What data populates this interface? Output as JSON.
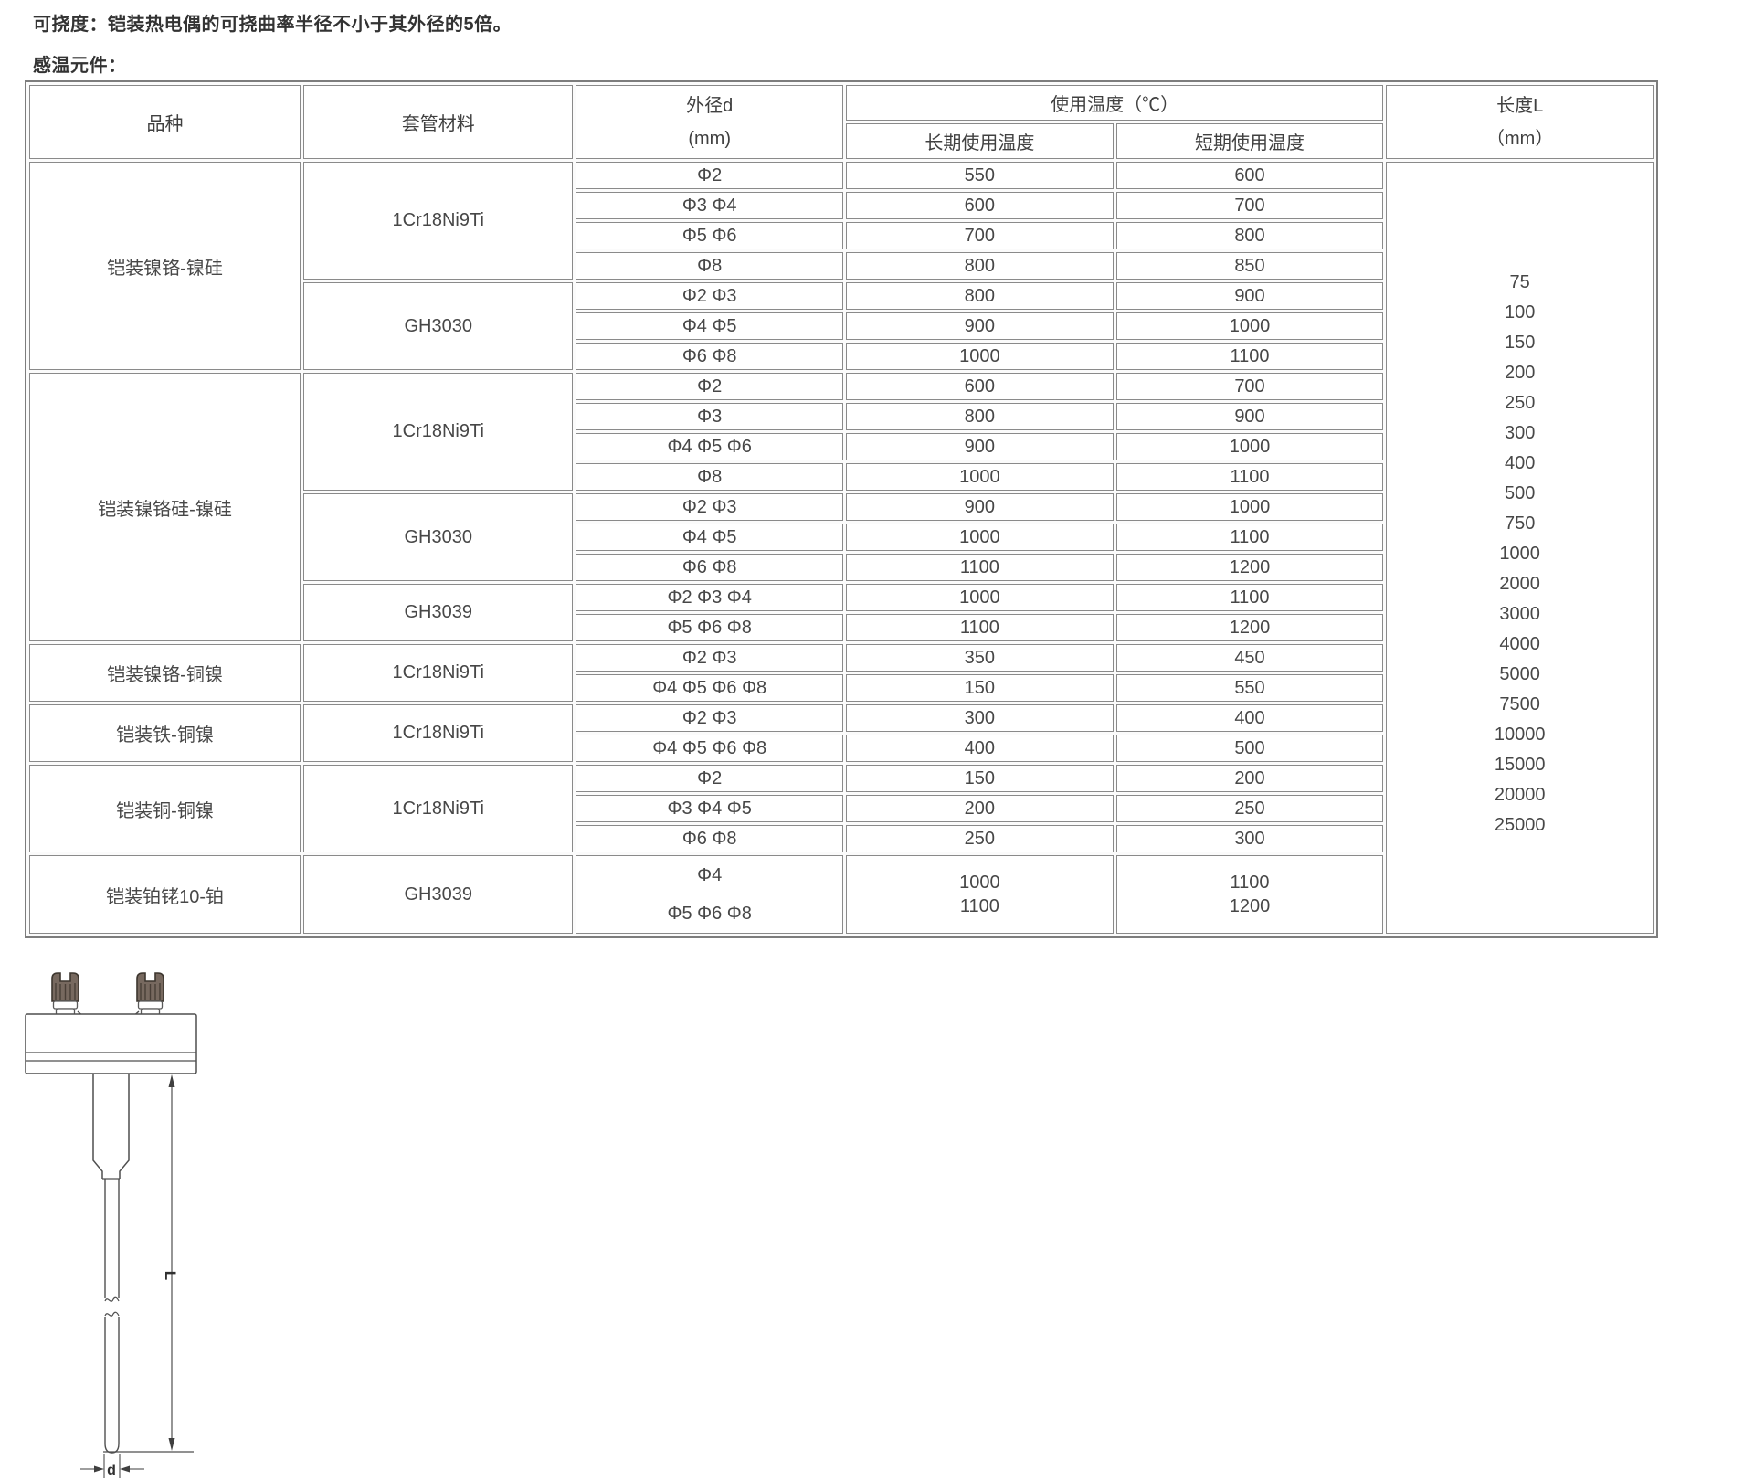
{
  "notes": {
    "flexibility": "可挠度：铠装热电偶的可挠曲率半径不小于其外径的5倍。",
    "sensor": "感温元件："
  },
  "table": {
    "headers": {
      "variety": "品种",
      "sheath": "套管材料",
      "outer_diameter": "外径d\n(mm)",
      "service_temp": "使用温度（℃）",
      "long_term": "长期使用温度",
      "short_term": "短期使用温度",
      "length": "长度L\n（mm）"
    },
    "rows": [
      {
        "variety": "铠装镍铬-镍硅",
        "variety_rows": 7,
        "material": "1Cr18Ni9Ti",
        "material_rows": 4,
        "d": "Φ2",
        "lt": "550",
        "st": "600"
      },
      {
        "d": "Φ3 Φ4",
        "lt": "600",
        "st": "700"
      },
      {
        "d": "Φ5 Φ6",
        "lt": "700",
        "st": "800"
      },
      {
        "d": "Φ8",
        "lt": "800",
        "st": "850"
      },
      {
        "material": "GH3030",
        "material_rows": 3,
        "d": "Φ2 Φ3",
        "lt": "800",
        "st": "900"
      },
      {
        "d": "Φ4 Φ5",
        "lt": "900",
        "st": "1000"
      },
      {
        "d": "Φ6 Φ8",
        "lt": "1000",
        "st": "1100"
      },
      {
        "variety": "铠装镍铬硅-镍硅",
        "variety_rows": 9,
        "material": "1Cr18Ni9Ti",
        "material_rows": 4,
        "d": "Φ2",
        "lt": "600",
        "st": "700"
      },
      {
        "d": "Φ3",
        "lt": "800",
        "st": "900"
      },
      {
        "d": "Φ4 Φ5 Φ6",
        "lt": "900",
        "st": "1000"
      },
      {
        "d": "Φ8",
        "lt": "1000",
        "st": "1100"
      },
      {
        "material": "GH3030",
        "material_rows": 3,
        "d": "Φ2 Φ3",
        "lt": "900",
        "st": "1000"
      },
      {
        "d": "Φ4 Φ5",
        "lt": "1000",
        "st": "1100"
      },
      {
        "d": "Φ6 Φ8",
        "lt": "1100",
        "st": "1200"
      },
      {
        "material": "GH3039",
        "material_rows": 2,
        "d": "Φ2 Φ3 Φ4",
        "lt": "1000",
        "st": "1100"
      },
      {
        "d": "Φ5 Φ6 Φ8",
        "lt": "1100",
        "st": "1200"
      },
      {
        "variety": "铠装镍铬-铜镍",
        "variety_rows": 2,
        "material": "1Cr18Ni9Ti",
        "material_rows": 2,
        "d": "Φ2 Φ3",
        "lt": "350",
        "st": "450"
      },
      {
        "d": "Φ4 Φ5 Φ6 Φ8",
        "lt": "150",
        "st": "550"
      },
      {
        "variety": "铠装铁-铜镍",
        "variety_rows": 2,
        "material": "1Cr18Ni9Ti",
        "material_rows": 2,
        "d": "Φ2 Φ3",
        "lt": "300",
        "st": "400"
      },
      {
        "d": "Φ4 Φ5 Φ6 Φ8",
        "lt": "400",
        "st": "500"
      },
      {
        "variety": "铠装铜-铜镍",
        "variety_rows": 3,
        "material": "1Cr18Ni9Ti",
        "material_rows": 3,
        "d": "Φ2",
        "lt": "150",
        "st": "200"
      },
      {
        "d": "Φ3 Φ4 Φ5",
        "lt": "200",
        "st": "250"
      },
      {
        "d": "Φ6 Φ8",
        "lt": "250",
        "st": "300"
      },
      {
        "variety": "铠装铂铑10-铂",
        "variety_rows": 1,
        "material": "GH3039",
        "material_rows": 1,
        "d": "Φ4\nΦ5 Φ6 Φ8",
        "lt": "1000\n1100",
        "st": "1100\n1200",
        "tall": true
      }
    ],
    "lengths": [
      "75",
      "100",
      "150",
      "200",
      "250",
      "300",
      "400",
      "500",
      "750",
      "1000",
      "2000",
      "3000",
      "4000",
      "5000",
      "7500",
      "10000",
      "15000",
      "20000",
      "25000"
    ]
  },
  "diagram": {
    "length_label": "L",
    "diameter_label": "d"
  }
}
